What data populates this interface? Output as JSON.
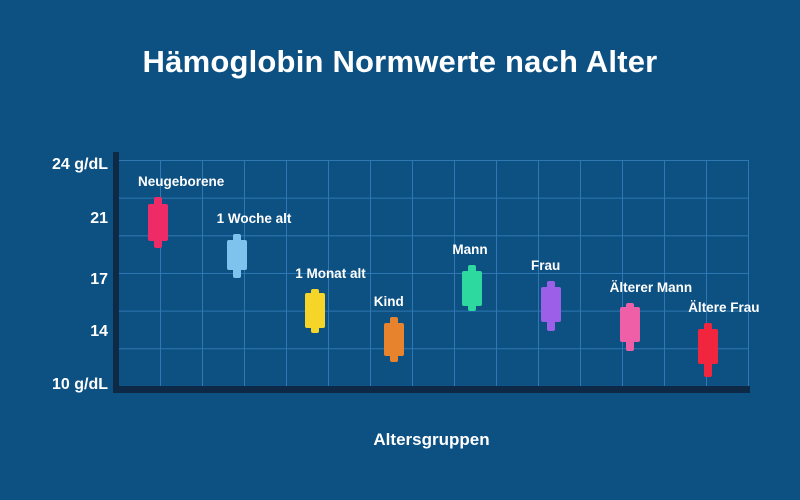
{
  "page": {
    "background_color": "#0d5082",
    "grid_color": "#2f78b3",
    "axis_color": "#0d2946",
    "text_color": "#ffffff"
  },
  "chart_data": {
    "type": "candlestick",
    "title": "Hämoglobin Normwerte nach Alter",
    "xlabel": "Altersgruppen",
    "ylabel": "g/dL",
    "ylim": [
      10,
      24
    ],
    "grid": true,
    "legend": "none",
    "y_ticks": [
      {
        "value": 24,
        "label": "24 g/dL"
      },
      {
        "value": 21,
        "label": "21"
      },
      {
        "value": 17,
        "label": "17"
      },
      {
        "value": 14,
        "label": "14"
      },
      {
        "value": 10,
        "label": "10 g/dL"
      }
    ],
    "categories": [
      "Neugeborene",
      "1 Woche alt",
      "1 Monat alt",
      "Kind",
      "Mann",
      "Frau",
      "Älterer Mann",
      "Ältere Frau"
    ],
    "series": [
      {
        "label": "Neugeborene",
        "color": "#ee2a67",
        "box_low": 19.2,
        "box_high": 21.6,
        "wick_low": 18.8,
        "wick_high": 22.0
      },
      {
        "label": "1 Woche alt",
        "color": "#7ec2ee",
        "box_low": 17.4,
        "box_high": 19.3,
        "wick_low": 16.9,
        "wick_high": 19.7
      },
      {
        "label": "1 Monat alt",
        "color": "#f5d527",
        "box_low": 13.7,
        "box_high": 15.9,
        "wick_low": 13.4,
        "wick_high": 16.2
      },
      {
        "label": "Kind",
        "color": "#e8832d",
        "box_low": 11.9,
        "box_high": 14.0,
        "wick_low": 11.5,
        "wick_high": 14.4
      },
      {
        "label": "Mann",
        "color": "#2ed9a0",
        "box_low": 15.1,
        "box_high": 17.3,
        "wick_low": 14.8,
        "wick_high": 17.7
      },
      {
        "label": "Frau",
        "color": "#9b5fe8",
        "box_low": 14.1,
        "box_high": 16.3,
        "wick_low": 13.5,
        "wick_high": 16.7
      },
      {
        "label": "Älterer Mann",
        "color": "#ef5fa7",
        "box_low": 12.8,
        "box_high": 15.0,
        "wick_low": 12.2,
        "wick_high": 15.3
      },
      {
        "label": "Ältere Frau",
        "color": "#f2253f",
        "box_low": 11.4,
        "box_high": 13.6,
        "wick_low": 10.6,
        "wick_high": 14.0
      }
    ]
  }
}
